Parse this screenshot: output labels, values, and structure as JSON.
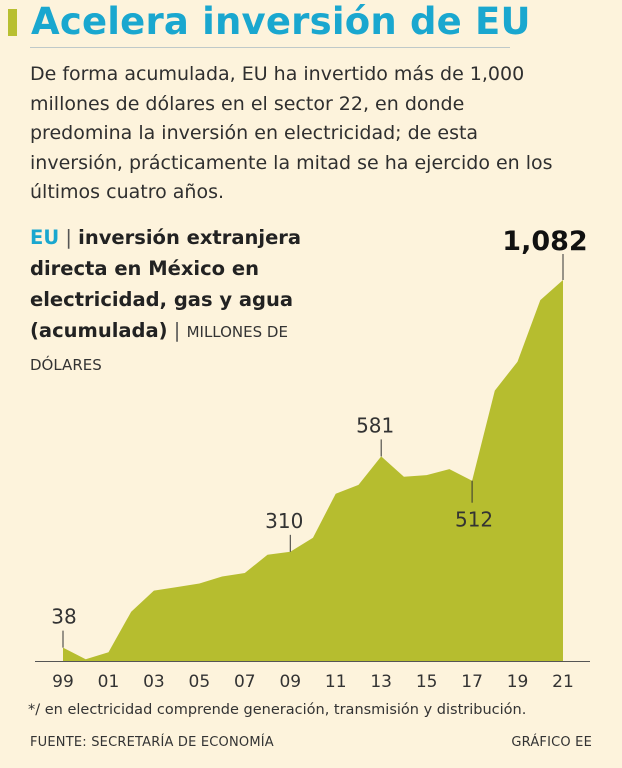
{
  "headline": "Acelera inversión de EU",
  "deck": "De forma acumulada, EU ha invertido más de 1,000 millones de dólares en el sector 22, en donde predomina la inversión en electricidad; de esta inversión, prácticamente la mitad se ha ejercido en los últimos cuatro años.",
  "chart_title": {
    "country": "EU",
    "separator": "|",
    "bold_text": "inversión extranjera directa en México en electricidad, gas y agua (acumulada)",
    "units_separator": "|",
    "units": "MILLONES DE DÓLARES"
  },
  "footnote": "*/ en electricidad comprende generación, transmisión y distribución.",
  "source": "FUENTE: SECRETARÍA DE ECONOMÍA",
  "credit": "GRÁFICO EE",
  "colors": {
    "area": "#b6bd2f",
    "accent": "#1aa7cf",
    "background": "#fdf3dc"
  },
  "chart_data": {
    "type": "area",
    "title": "EU | inversión extranjera directa en México en electricidad, gas y agua (acumulada)",
    "ylabel": "MILLONES DE DÓLARES",
    "x": [
      1999,
      2000,
      2001,
      2002,
      2003,
      2004,
      2005,
      2006,
      2007,
      2008,
      2009,
      2010,
      2011,
      2012,
      2013,
      2014,
      2015,
      2016,
      2017,
      2018,
      2019,
      2020,
      2021
    ],
    "values": [
      38,
      5,
      25,
      140,
      200,
      210,
      220,
      240,
      250,
      302,
      310,
      350,
      475,
      500,
      581,
      523,
      528,
      545,
      512,
      768,
      850,
      1025,
      1082
    ],
    "tick_labels": [
      "99",
      "01",
      "03",
      "05",
      "07",
      "09",
      "11",
      "13",
      "15",
      "17",
      "19",
      "21"
    ],
    "tick_years": [
      1999,
      2001,
      2003,
      2005,
      2007,
      2009,
      2011,
      2013,
      2015,
      2017,
      2019,
      2021
    ],
    "annotations": [
      {
        "year": 1999,
        "value": 38,
        "label": "38",
        "position": "above"
      },
      {
        "year": 2009,
        "value": 310,
        "label": "310",
        "position": "above"
      },
      {
        "year": 2013,
        "value": 581,
        "label": "581",
        "position": "above"
      },
      {
        "year": 2017,
        "value": 512,
        "label": "512",
        "position": "below"
      },
      {
        "year": 2021,
        "value": 1082,
        "label": "1,082",
        "position": "above"
      }
    ],
    "ylim": [
      0,
      1100
    ],
    "grid": false
  }
}
